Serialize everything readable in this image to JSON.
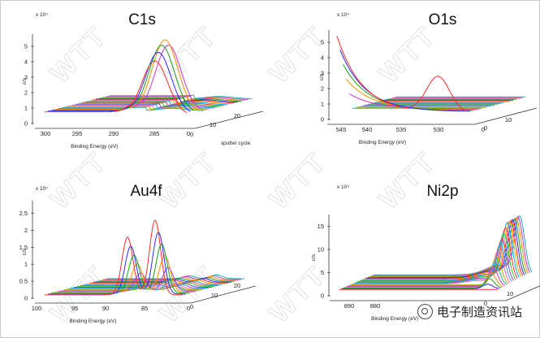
{
  "watermark": "WTT",
  "brand": {
    "label": "电子制造资讯站"
  },
  "colors": [
    "#ff2a2a",
    "#2a2aff",
    "#1aa01a",
    "#ff8c00",
    "#cc33cc",
    "#20b2aa",
    "#aaaa00",
    "#ff66aa",
    "#3399ff",
    "#8844cc",
    "#33cc33",
    "#ff3333",
    "#00aaff",
    "#ffaa00"
  ],
  "chart_data": [
    {
      "type": "line",
      "title": "C1s",
      "xlabel": "Binding Energy (eV)",
      "ylabel": "c/s",
      "zlabel": "sputter cycle",
      "y_multiplier": "x 10⁴",
      "x_ticks": [
        "300",
        "295",
        "290",
        "285",
        "0"
      ],
      "y_ticks": [
        "0",
        "1",
        "2",
        "3",
        "4",
        "5"
      ],
      "z_ticks": [
        "0",
        "10",
        "20"
      ],
      "x_range": [
        300,
        280
      ],
      "peak_position": 284.5,
      "peak_heights_first_traces": [
        3.5,
        4.0,
        4.4,
        4.7,
        4.3
      ],
      "baseline": 0.5,
      "series_count": 20
    },
    {
      "type": "line",
      "title": "O1s",
      "xlabel": "Binding Energy (eV)",
      "ylabel": "c/s",
      "y_multiplier": "x 10⁴",
      "x_ticks": [
        "545",
        "540",
        "535",
        "530",
        "0"
      ],
      "y_ticks": [
        "0",
        "1",
        "2",
        "3",
        "4",
        "5"
      ],
      "z_ticks": [
        "0",
        "10"
      ],
      "x_range": [
        545,
        527
      ],
      "peak_position": 531,
      "peak_height": 2.3,
      "series_count": 20
    },
    {
      "type": "line",
      "title": "Au4f",
      "xlabel": "Binding Energy (eV)",
      "ylabel": "c/s",
      "y_multiplier": "x 10⁵",
      "x_ticks": [
        "100",
        "95",
        "90",
        "85",
        "0"
      ],
      "y_ticks": [
        "0",
        "0.5",
        "1",
        "1.5",
        "2",
        "2.5"
      ],
      "z_ticks": [
        "0",
        "10",
        "20"
      ],
      "x_range": [
        100,
        80
      ],
      "peak_positions": [
        88,
        84
      ],
      "peak_heights": [
        1.7,
        2.2
      ],
      "series_count": 20
    },
    {
      "type": "line",
      "title": "Ni2p",
      "xlabel": "Binding Energy (eV)",
      "ylabel": "c/s",
      "y_multiplier": "x 10⁴",
      "x_ticks": [
        "890",
        "880"
      ],
      "y_ticks": [
        "0",
        "5",
        "10",
        "15"
      ],
      "z_ticks": [
        "0",
        "10"
      ],
      "x_range": [
        890,
        850
      ],
      "peak_position": 853,
      "peak_height": 12,
      "series_count": 20
    }
  ]
}
